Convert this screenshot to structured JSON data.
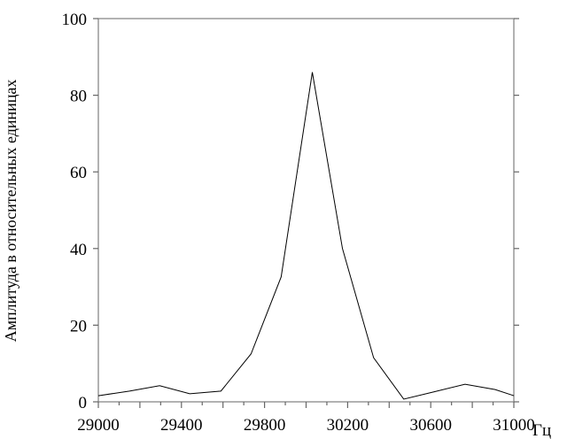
{
  "chart_data": {
    "type": "line",
    "title": "",
    "xlabel": "Гц",
    "ylabel": "Амплитуда в относительных единицах",
    "xlim": [
      29000,
      31000
    ],
    "ylim": [
      0,
      100
    ],
    "x_ticks": [
      29000,
      29400,
      29800,
      30200,
      30600,
      31000
    ],
    "x_tick_labels": [
      "29000",
      "29400",
      "29800",
      "30200",
      "30600",
      "31000"
    ],
    "y_ticks": [
      0,
      20,
      40,
      60,
      80,
      100
    ],
    "y_tick_labels": [
      "0",
      "20",
      "40",
      "60",
      "80",
      "100"
    ],
    "grid": false,
    "legend": "none",
    "line_color": "#000000",
    "series": [
      {
        "x": [
          29000,
          29150,
          29295,
          29440,
          29590,
          29735,
          29880,
          30030,
          30175,
          30325,
          30470,
          30615,
          30765,
          30910,
          31000
        ],
        "y": [
          1.6,
          2.8,
          4.2,
          2.1,
          2.8,
          12.5,
          32.6,
          86,
          40,
          11.5,
          0.7,
          2.6,
          4.6,
          3.2,
          1.6
        ]
      }
    ]
  }
}
